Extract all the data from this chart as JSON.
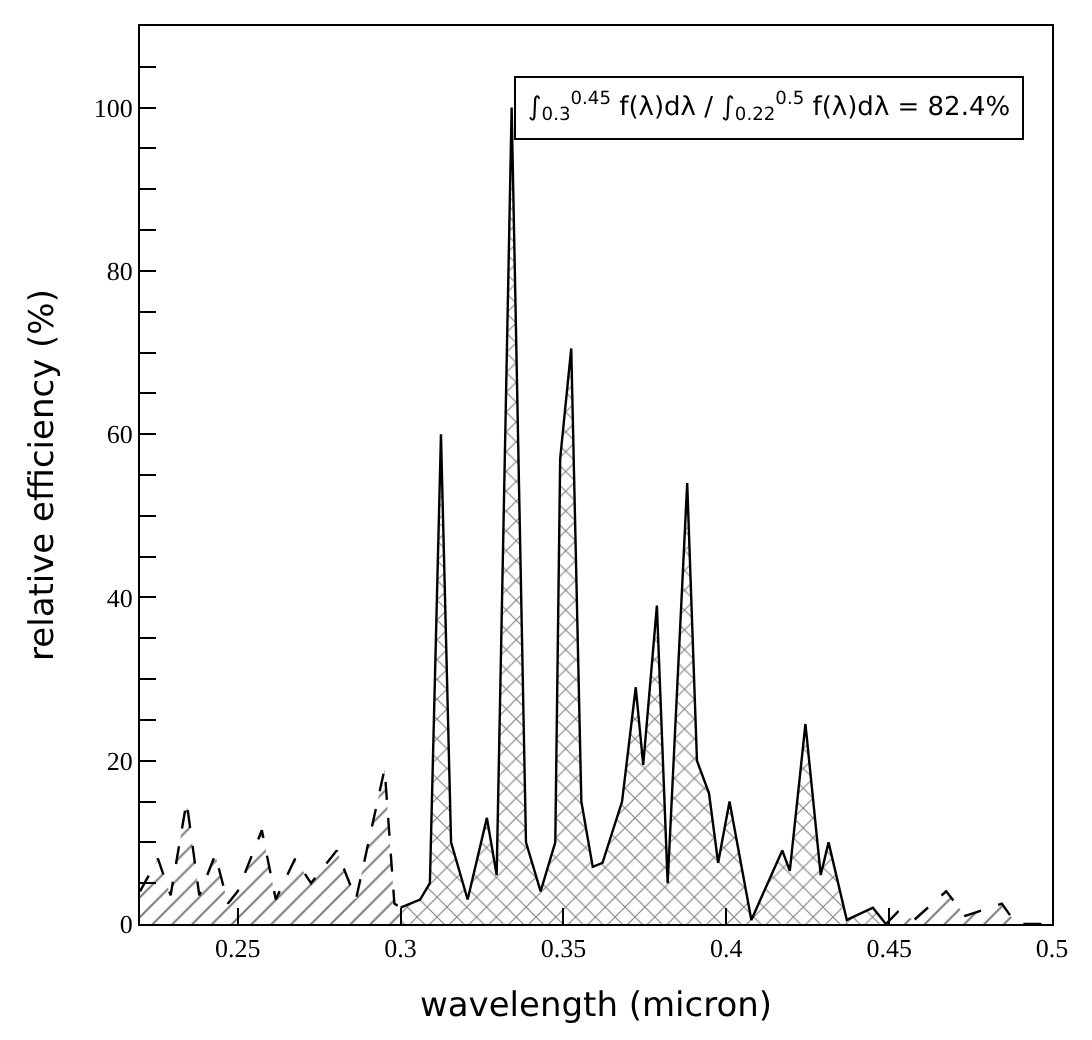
{
  "chart_data": {
    "type": "area",
    "xlabel": "wavelength (micron)",
    "ylabel": "relative efficiency (%)",
    "annotations": [
      "∫$_{0.3}$$^{0.45}$ f(λ)dλ / ∫$_{0.22}$$^{0.5}$ f(λ)dλ = 82.4%"
    ],
    "xlim": [
      0.22,
      0.5
    ],
    "xticks": [
      0.25,
      0.3,
      0.35,
      0.4,
      0.45,
      0.5
    ],
    "ylim": [
      0,
      110
    ],
    "yticks": [
      0,
      {
        "value": 5,
        "label": null
      },
      {
        "value": 10,
        "label": null
      },
      {
        "value": 15,
        "label": null
      },
      20,
      {
        "value": 25,
        "label": null
      },
      {
        "value": 30,
        "label": null
      },
      {
        "value": 35,
        "label": null
      },
      40,
      {
        "value": 45,
        "label": null
      },
      {
        "value": 50,
        "label": null
      },
      {
        "value": 55,
        "label": null
      },
      60,
      {
        "value": 65,
        "label": null
      },
      {
        "value": 70,
        "label": null
      },
      {
        "value": 75,
        "label": null
      },
      80,
      {
        "value": 85,
        "label": null
      },
      {
        "value": 90,
        "label": null
      },
      {
        "value": 95,
        "label": null
      },
      100,
      {
        "value": 105,
        "label": null
      }
    ],
    "series": [
      {
        "color": "#000000",
        "line_style": "dashed",
        "x": [
          0.22,
          0.2255,
          0.2294,
          0.2343,
          0.2382,
          0.2431,
          0.247,
          0.25,
          0.2574,
          0.2617,
          0.2676,
          0.2725,
          0.2804,
          0.2863,
          0.2951,
          0.2981,
          0.3
        ],
        "values": [
          4,
          8,
          3.5,
          15,
          3.5,
          8.5,
          2.5,
          4,
          11.5,
          3,
          8,
          5,
          9,
          3,
          19,
          2.5,
          2
        ]
      },
      {
        "color": "#000000",
        "line_style": "solid",
        "x": [
          0.3,
          0.306,
          0.309,
          0.3124,
          0.3155,
          0.3206,
          0.3265,
          0.3295,
          0.3341,
          0.3385,
          0.343,
          0.3475,
          0.349,
          0.3524,
          0.3555,
          0.359,
          0.362,
          0.368,
          0.3722,
          0.3745,
          0.3787,
          0.382,
          0.388,
          0.391,
          0.3947,
          0.3975,
          0.401,
          0.4077,
          0.4172,
          0.4195,
          0.4243,
          0.429,
          0.4314,
          0.437,
          0.445,
          0.449
        ],
        "values": [
          2,
          3,
          5,
          60,
          10,
          3,
          13,
          6,
          100,
          10,
          4,
          10,
          57,
          70.5,
          15,
          7,
          7.5,
          15,
          29,
          19.5,
          39,
          5,
          54,
          20,
          16,
          7.5,
          15,
          0.5,
          9,
          6.5,
          24.5,
          6,
          10,
          0.5,
          2,
          0
        ]
      },
      {
        "color": "#000000",
        "line_style": "dashed",
        "x": [
          0.449,
          0.4527,
          0.4577,
          0.4675,
          0.4734,
          0.4846,
          0.489,
          0.5
        ],
        "values": [
          0,
          1.5,
          0.5,
          4,
          1,
          2.5,
          0,
          0
        ]
      }
    ]
  }
}
